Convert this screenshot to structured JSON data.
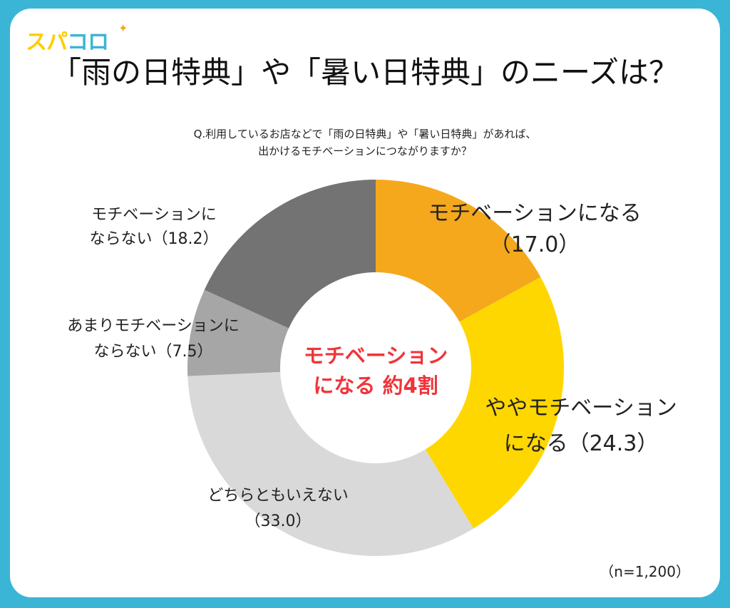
{
  "logo": {
    "text_a": "スパ",
    "text_b": "コロ",
    "sparkle": "✦"
  },
  "title": "「雨の日特典」や「暑い日特典」のニーズは？",
  "question": "Q.利用しているお店などで「雨の日特典」や「暑い日特典」があれば、\n出かけるモチベーションにつながりますか？",
  "center_label": "モチベーション\nになる 約4割",
  "sample": "（n=1,200）",
  "colors": {
    "border": "#3bb5d6"
  },
  "chart_data": {
    "type": "pie",
    "donut": true,
    "start": "top, clockwise",
    "slices": [
      {
        "label": "モチベーションになる",
        "value": 17.0,
        "display": "モチベーションになる\n（17.0）",
        "color": "#f5a81c"
      },
      {
        "label": "ややモチベーションになる",
        "value": 24.3,
        "display": "ややモチベーション\nになる（24.3）",
        "color": "#ffd700"
      },
      {
        "label": "どちらともいえない",
        "value": 33.0,
        "display": "どちらともいえない\n（33.0）",
        "color": "#d9d9d9"
      },
      {
        "label": "あまりモチベーションにならない",
        "value": 7.5,
        "display": "あまりモチベーションに\nならない（7.5）",
        "color": "#a6a6a6"
      },
      {
        "label": "モチベーションにならない",
        "value": 18.2,
        "display": "モチベーションに\nならない（18.2）",
        "color": "#737373"
      }
    ]
  }
}
